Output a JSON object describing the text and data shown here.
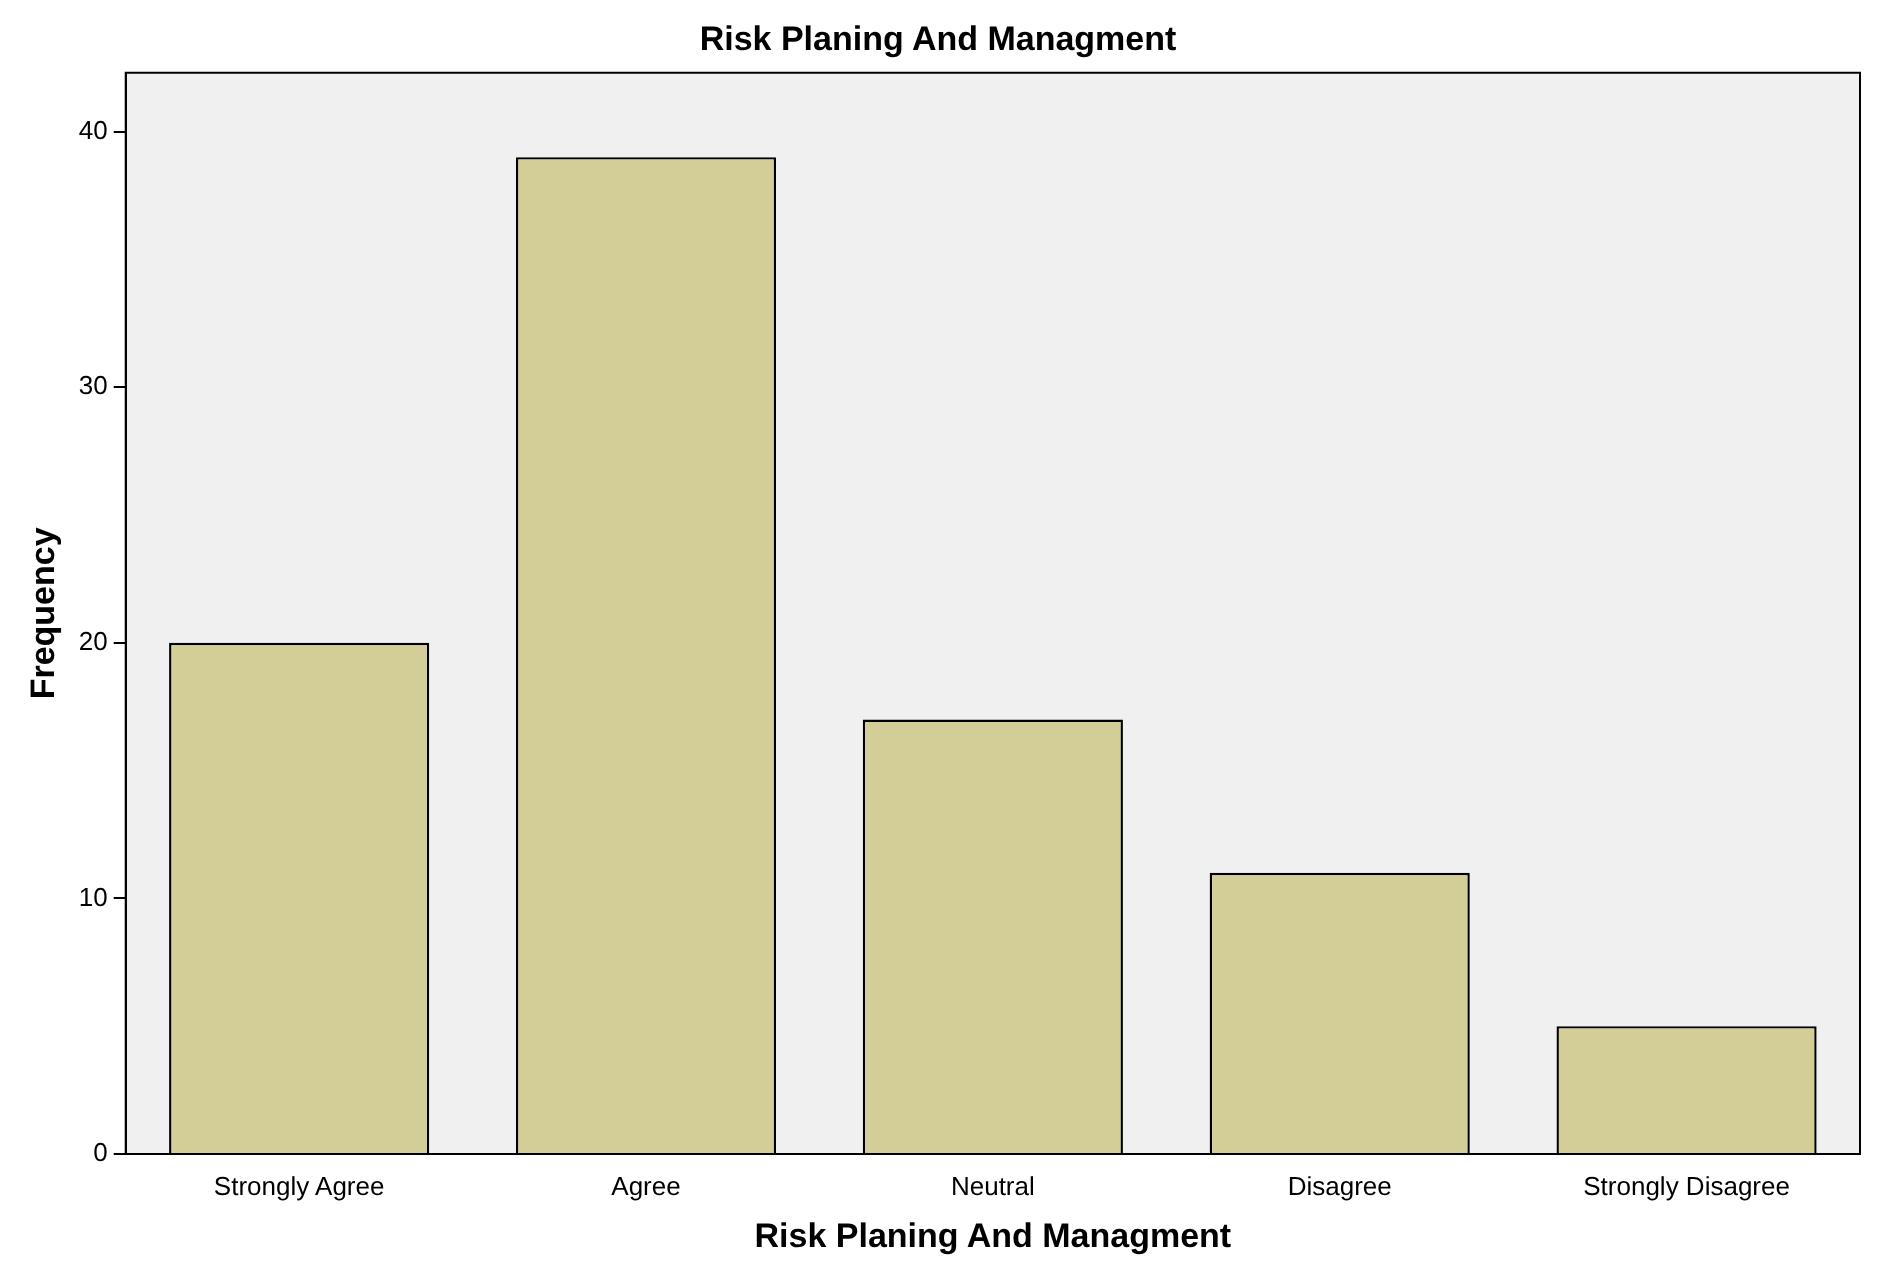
{
  "chart_data": {
    "type": "bar",
    "title": "Risk Planing And Managment",
    "xlabel": "Risk Planing And Managment",
    "ylabel": "Frequency",
    "categories": [
      "Strongly Agree",
      "Agree",
      "Neutral",
      "Disagree",
      "Strongly Disagree"
    ],
    "values": [
      20,
      39,
      17,
      11,
      5
    ],
    "color": "#d3cd98",
    "ylim": [
      0,
      42.3
    ],
    "yticks": [
      0,
      10,
      20,
      30,
      40
    ],
    "grid": false,
    "legend": false
  }
}
